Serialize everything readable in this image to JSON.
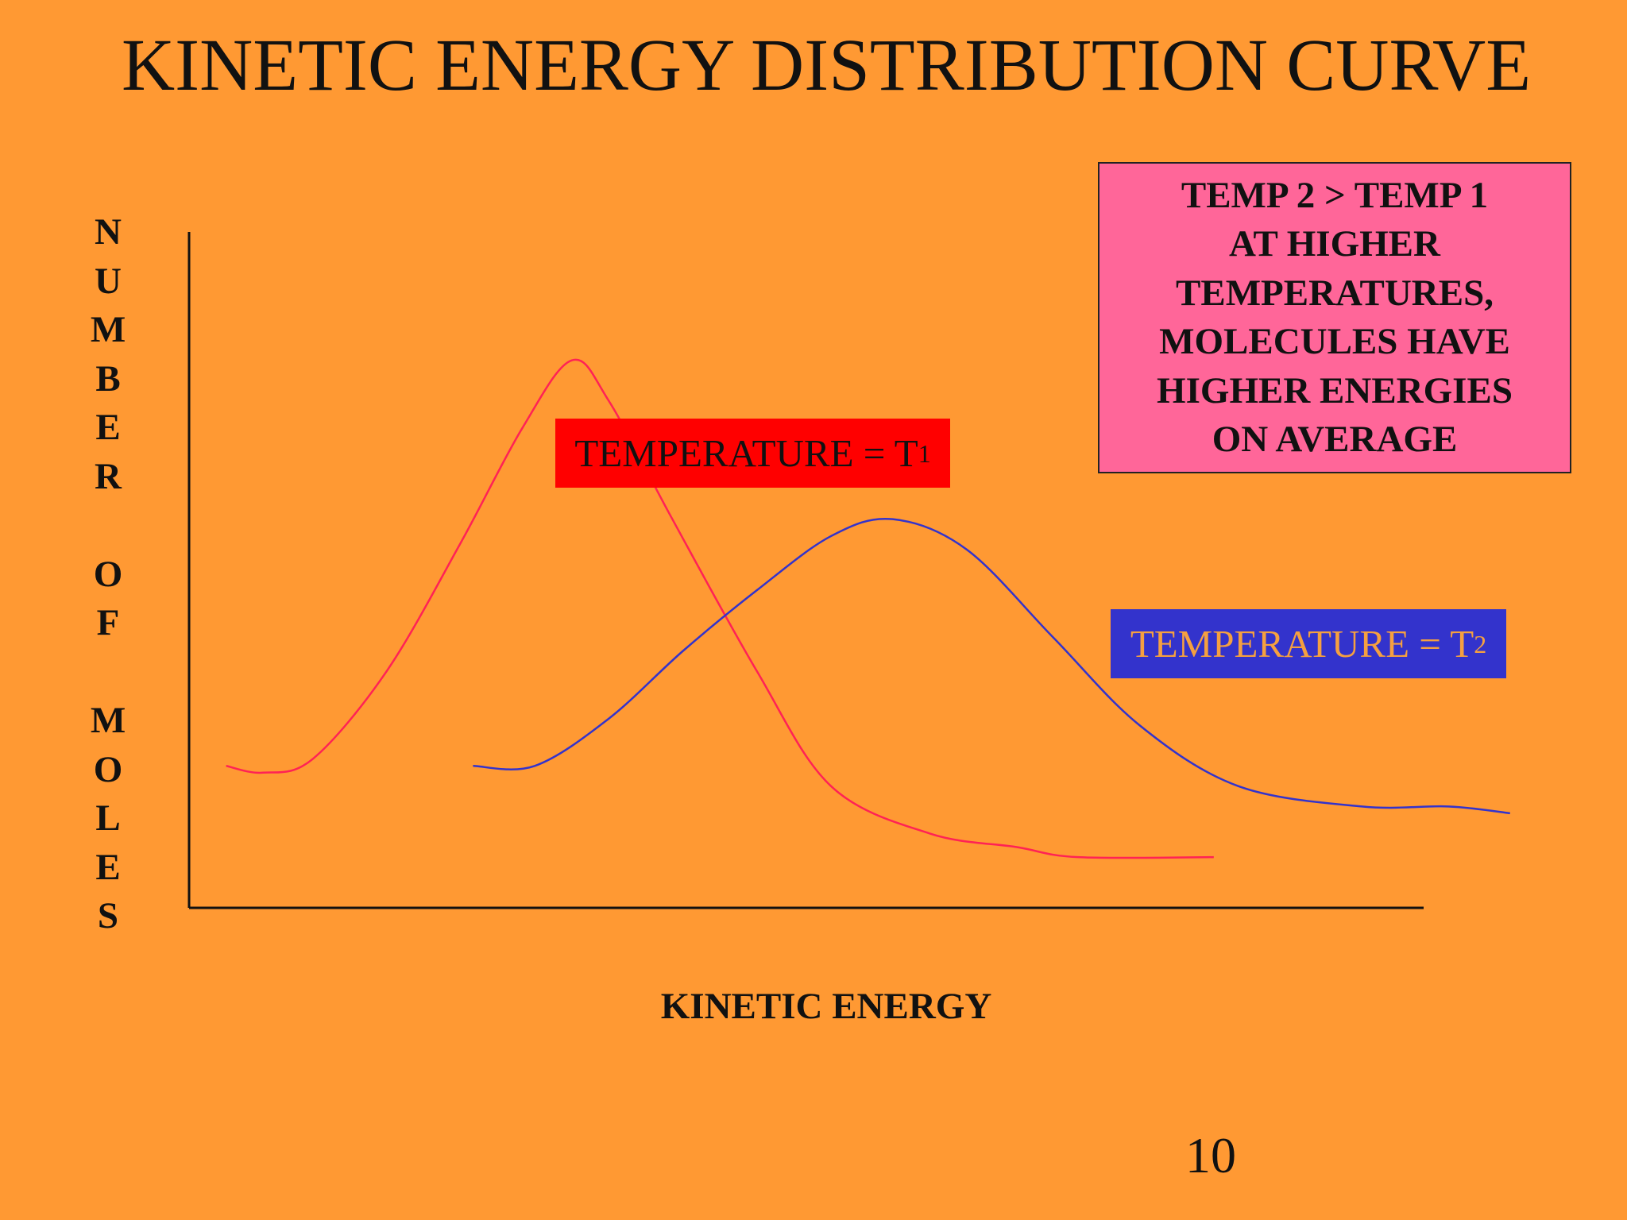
{
  "slide": {
    "title": "KINETIC ENERGY DISTRIBUTION CURVE",
    "page_number": "10",
    "note_lines": [
      "TEMP 2 > TEMP 1",
      "AT HIGHER",
      "TEMPERATURES,",
      "MOLECULES HAVE",
      "HIGHER ENERGIES",
      "ON AVERAGE"
    ],
    "tag_t1": {
      "text": "TEMPERATURE = T",
      "sub": "1"
    },
    "tag_t2": {
      "text": "TEMPERATURE = T",
      "sub": "2"
    }
  },
  "colors": {
    "background": "#ff9933",
    "t1_curve": "#ff2255",
    "t2_curve": "#3333cc",
    "t1_tag": "#ff0000",
    "t2_tag": "#3333cc",
    "note_box": "#ff6699"
  },
  "chart_data": {
    "type": "line",
    "title": "KINETIC ENERGY DISTRIBUTION CURVE",
    "xlabel": "KINETIC ENERGY",
    "ylabel": "NUMBER OF MOLES",
    "ylabel_letters": [
      "N",
      "U",
      "M",
      "B",
      "E",
      "R",
      "",
      "O",
      "F",
      "",
      "M",
      "O",
      "L",
      "E",
      "S"
    ],
    "axis_ticks": false,
    "grid": false,
    "xlim": [
      0,
      100
    ],
    "ylim": [
      0,
      100
    ],
    "series": [
      {
        "name": "TEMPERATURE = T1",
        "color": "#ff2255",
        "points": [
          [
            3,
            21
          ],
          [
            6,
            20
          ],
          [
            10,
            22
          ],
          [
            16,
            35
          ],
          [
            22,
            54
          ],
          [
            27,
            71
          ],
          [
            31,
            81
          ],
          [
            34,
            75
          ],
          [
            39,
            58
          ],
          [
            46,
            35
          ],
          [
            52,
            18
          ],
          [
            60,
            11
          ],
          [
            67,
            9
          ],
          [
            72,
            7.5
          ],
          [
            83,
            7.5
          ]
        ]
      },
      {
        "name": "TEMPERATURE = T2",
        "color": "#3333cc",
        "points": [
          [
            23,
            21
          ],
          [
            28,
            21
          ],
          [
            34,
            28
          ],
          [
            40,
            38
          ],
          [
            46,
            47
          ],
          [
            52,
            55
          ],
          [
            57,
            57.5
          ],
          [
            63,
            53
          ],
          [
            70,
            40
          ],
          [
            77,
            27
          ],
          [
            85,
            18
          ],
          [
            95,
            15
          ],
          [
            102,
            15
          ],
          [
            107,
            14
          ]
        ]
      }
    ]
  }
}
